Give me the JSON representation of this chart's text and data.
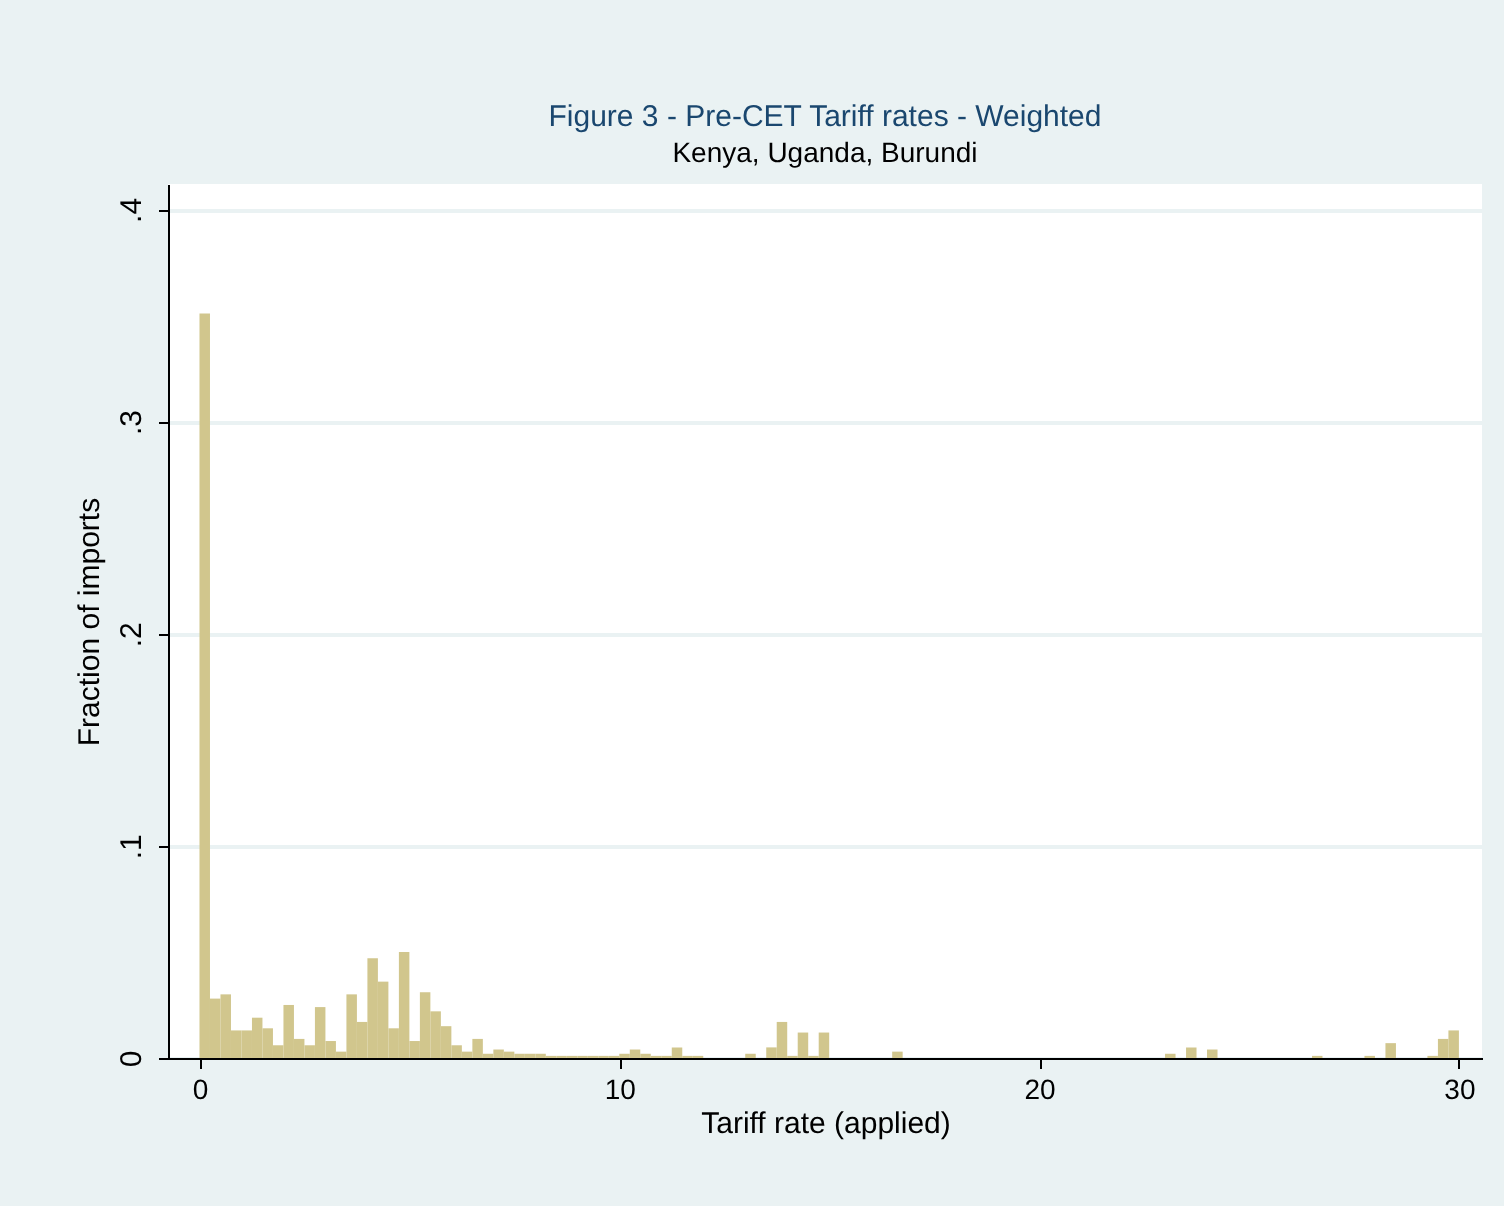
{
  "chart_data": {
    "type": "histogram",
    "title": "Figure 3 - Pre-CET Tariff rates - Weighted",
    "subtitle": "Kenya, Uganda, Burundi",
    "xlabel": "Tariff rate (applied)",
    "ylabel": "Fraction of imports",
    "bins": [
      0,
      0.25,
      0.5,
      0.75,
      1,
      1.25,
      1.5,
      1.75,
      2,
      2.25,
      2.5,
      2.75,
      3,
      3.25,
      3.5,
      3.75,
      4,
      4.25,
      4.5,
      4.75,
      5,
      5.25,
      5.5,
      5.75,
      6,
      6.25,
      6.5,
      6.75,
      7,
      7.25,
      7.5,
      7.75,
      8,
      8.25,
      8.5,
      8.75,
      9,
      9.25,
      9.5,
      9.75,
      10,
      10.25,
      10.5,
      10.75,
      11,
      11.25,
      11.5,
      11.75,
      12,
      12.25,
      12.5,
      12.75,
      13,
      13.25,
      13.5,
      13.75,
      14,
      14.25,
      14.5,
      14.75,
      15,
      15.25,
      15.5,
      15.75,
      16,
      16.25,
      16.5,
      16.75,
      17,
      17.25,
      17.5,
      17.75,
      18,
      18.25,
      18.5,
      18.75,
      19,
      19.25,
      19.5,
      19.75,
      20,
      20.25,
      20.5,
      20.75,
      21,
      21.25,
      21.5,
      21.75,
      22,
      22.25,
      22.5,
      22.75,
      23,
      23.25,
      23.5,
      23.75,
      24,
      24.25,
      24.5,
      24.75,
      25,
      25.25,
      25.5,
      25.75,
      26,
      26.25,
      26.5,
      26.75,
      27,
      27.25,
      27.5,
      27.75,
      28,
      28.25,
      28.5,
      28.75,
      29,
      29.25,
      29.5,
      29.75,
      30
    ],
    "values": [
      0.351,
      0.028,
      0.03,
      0.013,
      0.013,
      0.019,
      0.014,
      0.006,
      0.025,
      0.009,
      0.006,
      0.024,
      0.008,
      0.003,
      0.03,
      0.017,
      0.047,
      0.036,
      0.014,
      0.05,
      0.008,
      0.031,
      0.022,
      0.015,
      0.006,
      0.003,
      0.009,
      0.002,
      0.004,
      0.003,
      0.002,
      0.002,
      0.002,
      0.001,
      0.001,
      0.001,
      0.001,
      0.001,
      0.001,
      0.001,
      0.002,
      0.004,
      0.002,
      0.001,
      0.001,
      0.005,
      0.001,
      0.001,
      0,
      0,
      0,
      0,
      0.002,
      0,
      0.005,
      0.017,
      0.001,
      0.012,
      0.001,
      0.012,
      0,
      0,
      0,
      0,
      0,
      0,
      0.003,
      0,
      0,
      0,
      0,
      0,
      0,
      0,
      0,
      0,
      0,
      0,
      0,
      0,
      0,
      0,
      0,
      0,
      0,
      0,
      0,
      0,
      0,
      0,
      0,
      0,
      0.002,
      0,
      0.005,
      0,
      0.004,
      0,
      0,
      0,
      0,
      0,
      0,
      0,
      0,
      0,
      0.001,
      0,
      0,
      0,
      0,
      0.001,
      0,
      0.007,
      0,
      0,
      0,
      0.001,
      0.009,
      0.013
    ],
    "color": "#d1c68d",
    "xlim": [
      -0.75,
      30.55
    ],
    "xticks": [
      0,
      10,
      20,
      30
    ],
    "ylim": [
      0,
      0.412
    ],
    "yticks": [
      0,
      {
        "value": 0.1,
        "label": ".1"
      },
      {
        "value": 0.2,
        "label": ".2"
      },
      {
        "value": 0.3,
        "label": ".3"
      },
      {
        "value": 0.4,
        "label": ".4"
      }
    ],
    "grid": "y",
    "legend": false
  }
}
